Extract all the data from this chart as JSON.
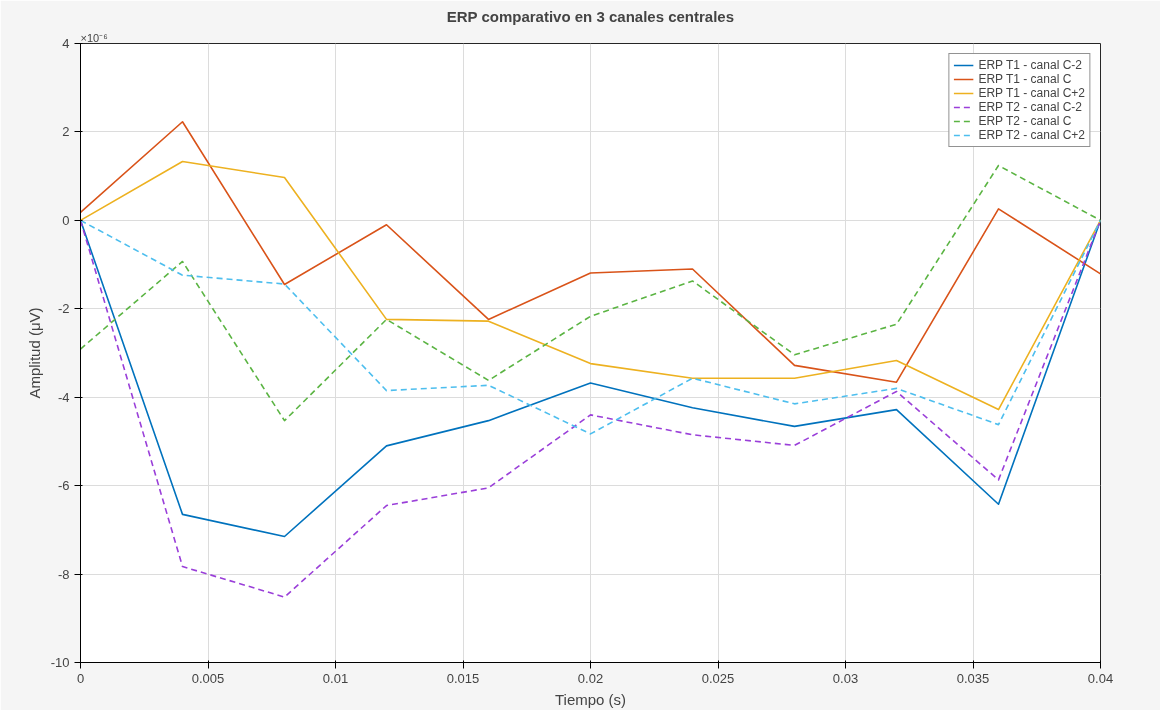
{
  "chart_data": {
    "type": "line",
    "title": "ERP comparativo en 3 canales centrales",
    "xlabel": "Tiempo (s)",
    "ylabel": "Amplitud (μV)",
    "annotations": [
      "×10⁻⁶"
    ],
    "x": [
      0,
      0.004,
      0.008,
      0.012,
      0.016,
      0.02,
      0.024,
      0.028,
      0.032,
      0.036,
      0.04
    ],
    "xlim": [
      0,
      0.04
    ],
    "xticks": [
      0,
      0.005,
      0.01,
      0.015,
      0.02,
      0.025,
      0.03,
      0.035,
      0.04
    ],
    "ylim": [
      -10,
      4
    ],
    "yticks": [
      -10,
      -8,
      -6,
      -4,
      -2,
      0,
      2,
      4
    ],
    "grid": true,
    "legend": "top right",
    "marker": "none",
    "series": [
      {
        "name": "ERP T1 - canal C-2",
        "color": "#0072bd",
        "line_style": "solid",
        "values": [
          0,
          -6.65,
          -7.15,
          -5.1,
          -4.53,
          -3.68,
          -4.24,
          -4.66,
          -4.28,
          -6.42,
          0
        ]
      },
      {
        "name": "ERP T1 - canal C",
        "color": "#d95319",
        "line_style": "solid",
        "values": [
          0.18,
          2.23,
          -1.45,
          -0.1,
          -2.24,
          -1.19,
          -1.1,
          -3.28,
          -3.66,
          0.26,
          -1.21
        ]
      },
      {
        "name": "ERP T1 - canal C+2",
        "color": "#edb120",
        "line_style": "solid",
        "values": [
          0,
          1.33,
          0.97,
          -2.24,
          -2.28,
          -3.24,
          -3.57,
          -3.57,
          -3.17,
          -4.28,
          0
        ]
      },
      {
        "name": "ERP T2 - canal C-2",
        "color": "#9a3fd9",
        "line_style": "dashed",
        "values": [
          0,
          -7.83,
          -8.52,
          -6.45,
          -6.05,
          -4.4,
          -4.85,
          -5.09,
          -3.87,
          -5.87,
          0
        ]
      },
      {
        "name": "ERP T2 - canal C",
        "color": "#5bb443",
        "line_style": "dashed",
        "values": [
          -2.91,
          -0.93,
          -4.53,
          -2.24,
          -3.62,
          -2.17,
          -1.37,
          -3.04,
          -2.35,
          1.24,
          0
        ]
      },
      {
        "name": "ERP T2 - canal C+2",
        "color": "#4dbeee",
        "line_style": "dashed",
        "values": [
          0,
          -1.24,
          -1.44,
          -3.85,
          -3.73,
          -4.83,
          -3.57,
          -4.15,
          -3.8,
          -4.62,
          0
        ]
      }
    ]
  }
}
